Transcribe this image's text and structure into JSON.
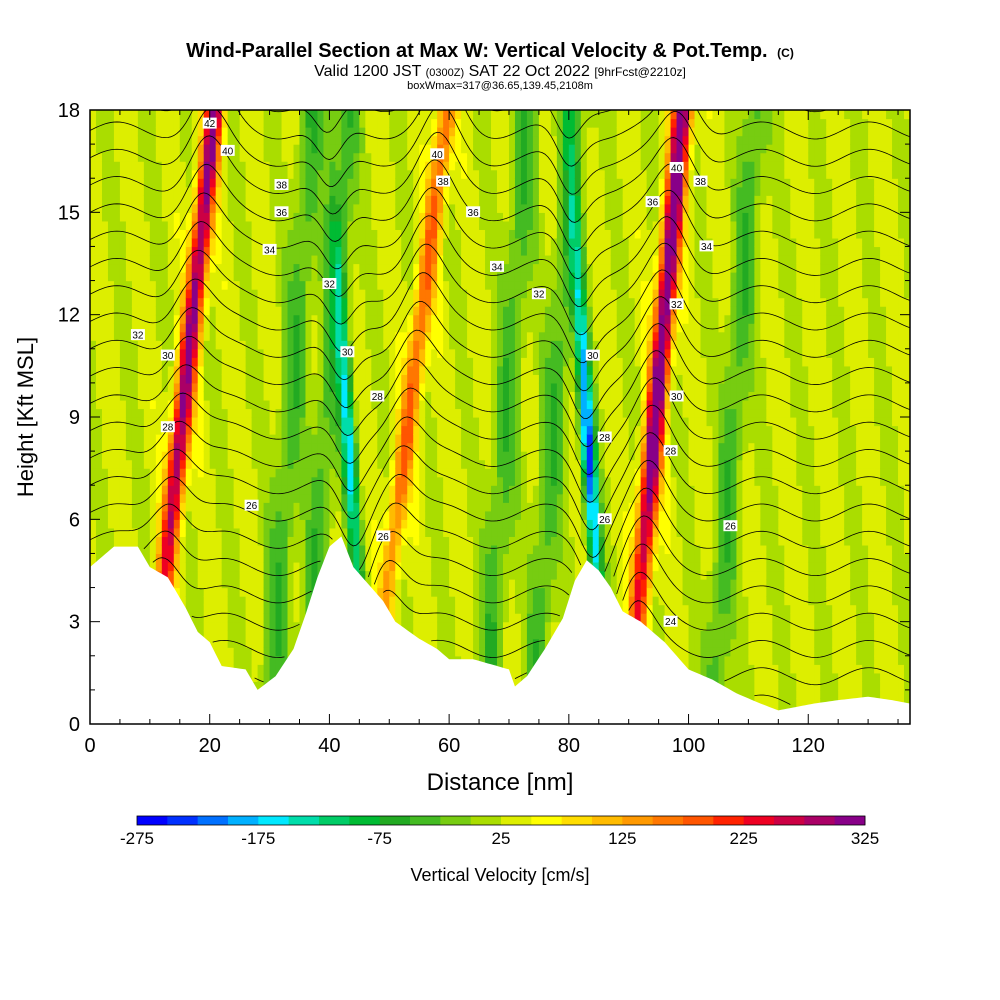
{
  "chart_data": {
    "type": "heatmap",
    "title": "Wind-Parallel Section at Max W: Vertical Velocity & Pot.Temp.",
    "title_mark": "(C)",
    "subtitle": {
      "a": "Valid 1200 JST",
      "b": "(0300Z)",
      "c": "SAT 22 Oct 2022",
      "d": "[9hrFcst@2210z]"
    },
    "subtitle2": "boxWmax=317@36.65,139.45,2108m",
    "xlabel": "Distance [nm]",
    "ylabel": "Height [Kft MSL]",
    "xlim": [
      0,
      137
    ],
    "ylim": [
      0,
      18
    ],
    "x_ticks": [
      0,
      20,
      40,
      60,
      80,
      100,
      120
    ],
    "x_tick_labels": [
      "0",
      "20",
      "40",
      "60",
      "80",
      "100",
      "120"
    ],
    "y_ticks": [
      0,
      3,
      6,
      9,
      12,
      15,
      18
    ],
    "y_tick_labels": [
      "0",
      "3",
      "6",
      "9",
      "12",
      "15",
      "18"
    ],
    "colorbar": {
      "label": "Vertical Velocity [cm/s]",
      "min": -275,
      "max": 325,
      "step": 25,
      "tick_values": [
        -275,
        -175,
        -75,
        25,
        125,
        225,
        325
      ],
      "tick_labels": [
        "-275",
        "-175",
        "-75",
        "25",
        "125",
        "225",
        "325"
      ],
      "colors": [
        "#0000ff",
        "#0030ff",
        "#0070ff",
        "#00b0ff",
        "#00e8ff",
        "#00ddaa",
        "#00cc66",
        "#00bb33",
        "#22aa22",
        "#44bb22",
        "#77cc11",
        "#aadd00",
        "#ddee00",
        "#ffff00",
        "#ffdd00",
        "#ffbb00",
        "#ff9900",
        "#ff7700",
        "#ff5500",
        "#ff2200",
        "#ee0022",
        "#cc0044",
        "#aa0066",
        "#880088"
      ]
    },
    "terrain": [
      [
        0,
        4.6
      ],
      [
        4,
        5.2
      ],
      [
        8,
        5.2
      ],
      [
        10,
        4.6
      ],
      [
        13,
        4.3
      ],
      [
        16,
        3.4
      ],
      [
        18,
        2.7
      ],
      [
        20,
        2.4
      ],
      [
        22,
        1.7
      ],
      [
        26,
        1.6
      ],
      [
        28,
        1.0
      ],
      [
        31,
        1.4
      ],
      [
        34,
        2.2
      ],
      [
        36,
        3.2
      ],
      [
        38,
        4.3
      ],
      [
        40,
        5.2
      ],
      [
        42,
        5.5
      ],
      [
        44,
        4.6
      ],
      [
        47,
        4.0
      ],
      [
        49,
        3.6
      ],
      [
        51,
        3.0
      ],
      [
        55,
        2.5
      ],
      [
        58,
        2.2
      ],
      [
        60,
        1.9
      ],
      [
        64,
        1.9
      ],
      [
        68,
        1.7
      ],
      [
        70,
        1.6
      ],
      [
        71,
        1.1
      ],
      [
        73,
        1.4
      ],
      [
        76,
        2.2
      ],
      [
        79,
        3.1
      ],
      [
        81,
        4.2
      ],
      [
        83,
        4.8
      ],
      [
        85,
        4.5
      ],
      [
        87,
        4.0
      ],
      [
        89,
        3.3
      ],
      [
        92,
        3.0
      ],
      [
        96,
        2.4
      ],
      [
        100,
        1.6
      ],
      [
        104,
        1.3
      ],
      [
        108,
        0.9
      ],
      [
        112,
        0.6
      ],
      [
        115,
        0.4
      ],
      [
        118,
        0.5
      ],
      [
        121,
        0.6
      ],
      [
        125,
        0.7
      ],
      [
        130,
        0.8
      ],
      [
        134,
        0.7
      ],
      [
        137,
        0.6
      ]
    ],
    "updraft_bands": [
      {
        "x_base": 10,
        "tilt": 0.6,
        "w_max": 280
      },
      {
        "x_base": 47,
        "tilt": 0.7,
        "w_max": 150
      },
      {
        "x_base": 90,
        "tilt": 0.5,
        "w_max": 317
      }
    ],
    "downdraft_bands": [
      {
        "x_base": 44,
        "tilt": -0.35,
        "w_min": -190
      },
      {
        "x_base": 84,
        "tilt": -0.35,
        "w_min": -270
      }
    ],
    "theta_contours": [
      {
        "value": 24,
        "label": "24"
      },
      {
        "value": 26,
        "label": "26"
      },
      {
        "value": 28,
        "label": "28"
      },
      {
        "value": 30,
        "label": "30"
      },
      {
        "value": 32,
        "label": "32"
      },
      {
        "value": 34,
        "label": "34"
      },
      {
        "value": 36,
        "label": "36"
      },
      {
        "value": 38,
        "label": "38"
      },
      {
        "value": 40,
        "label": "40"
      },
      {
        "value": 42,
        "label": "42"
      }
    ],
    "contour_labels": [
      {
        "x": 20,
        "z": 17.6,
        "text": "42"
      },
      {
        "x": 23,
        "z": 16.8,
        "text": "40"
      },
      {
        "x": 58,
        "z": 16.7,
        "text": "40"
      },
      {
        "x": 98,
        "z": 16.3,
        "text": "40"
      },
      {
        "x": 32,
        "z": 15.8,
        "text": "38"
      },
      {
        "x": 59,
        "z": 15.9,
        "text": "38"
      },
      {
        "x": 102,
        "z": 15.9,
        "text": "38"
      },
      {
        "x": 32,
        "z": 15.0,
        "text": "36"
      },
      {
        "x": 64,
        "z": 15.0,
        "text": "36"
      },
      {
        "x": 94,
        "z": 15.3,
        "text": "36"
      },
      {
        "x": 30,
        "z": 13.9,
        "text": "34"
      },
      {
        "x": 68,
        "z": 13.4,
        "text": "34"
      },
      {
        "x": 103,
        "z": 14.0,
        "text": "34"
      },
      {
        "x": 40,
        "z": 12.9,
        "text": "32"
      },
      {
        "x": 75,
        "z": 12.6,
        "text": "32"
      },
      {
        "x": 98,
        "z": 12.3,
        "text": "32"
      },
      {
        "x": 8,
        "z": 11.4,
        "text": "32"
      },
      {
        "x": 13,
        "z": 10.8,
        "text": "30"
      },
      {
        "x": 43,
        "z": 10.9,
        "text": "30"
      },
      {
        "x": 84,
        "z": 10.8,
        "text": "30"
      },
      {
        "x": 98,
        "z": 9.6,
        "text": "30"
      },
      {
        "x": 13,
        "z": 8.7,
        "text": "28"
      },
      {
        "x": 48,
        "z": 9.6,
        "text": "28"
      },
      {
        "x": 86,
        "z": 8.4,
        "text": "28"
      },
      {
        "x": 97,
        "z": 8.0,
        "text": "28"
      },
      {
        "x": 27,
        "z": 6.4,
        "text": "26"
      },
      {
        "x": 49,
        "z": 5.5,
        "text": "26"
      },
      {
        "x": 86,
        "z": 6.0,
        "text": "26"
      },
      {
        "x": 107,
        "z": 5.8,
        "text": "26"
      },
      {
        "x": 97,
        "z": 3.0,
        "text": "24"
      }
    ]
  }
}
